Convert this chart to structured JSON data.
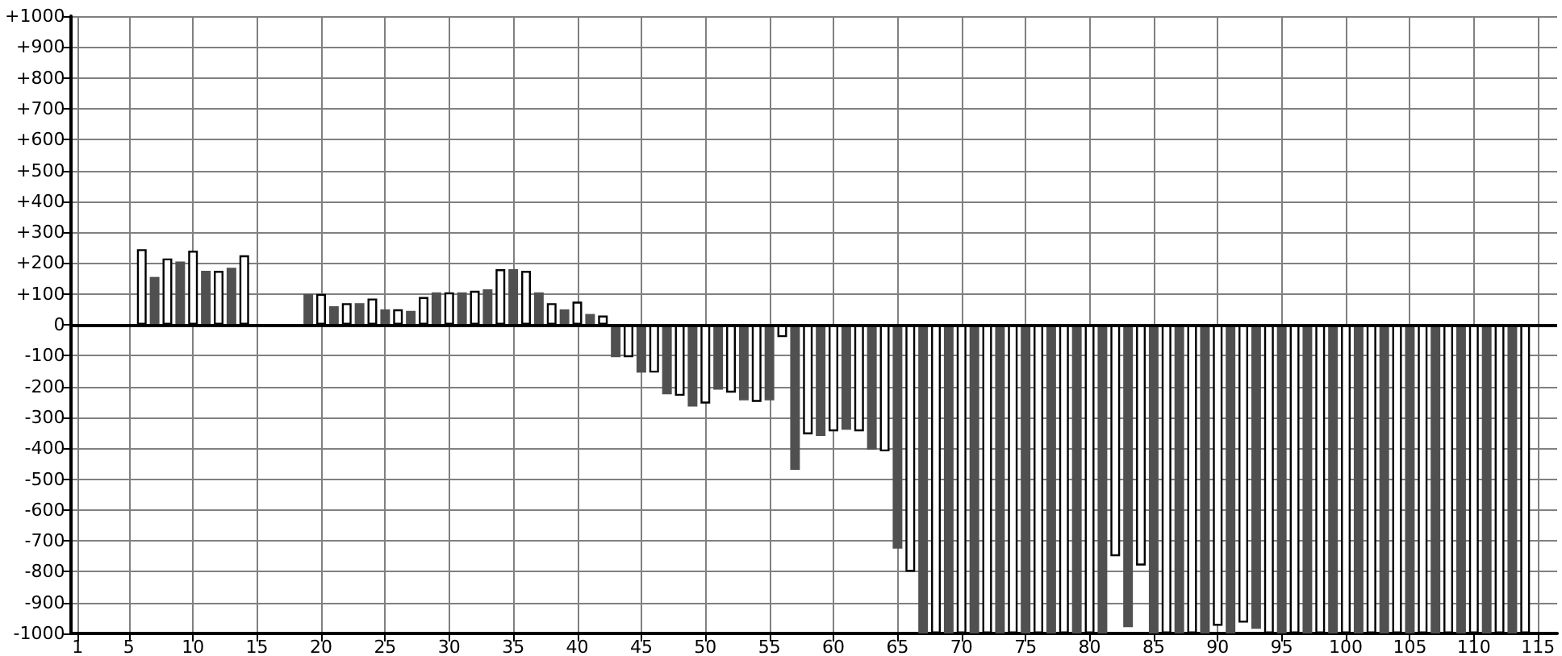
{
  "chart_data": {
    "type": "bar",
    "xlim": [
      0.5,
      116.5
    ],
    "xticks": [
      1,
      5,
      10,
      15,
      20,
      25,
      30,
      35,
      40,
      45,
      50,
      55,
      60,
      65,
      70,
      75,
      80,
      85,
      90,
      95,
      100,
      105,
      110,
      115
    ],
    "ylim": [
      -1000,
      1000
    ],
    "yticks": [
      {
        "value": -1000,
        "label": "-1000"
      },
      {
        "value": -900,
        "label": "-900"
      },
      {
        "value": -800,
        "label": "-800"
      },
      {
        "value": -700,
        "label": "-700"
      },
      {
        "value": -600,
        "label": "-600"
      },
      {
        "value": -500,
        "label": "-500"
      },
      {
        "value": -400,
        "label": "-400"
      },
      {
        "value": -300,
        "label": "-300"
      },
      {
        "value": -200,
        "label": "-200"
      },
      {
        "value": -100,
        "label": "-100"
      },
      {
        "value": 0,
        "label": "0"
      },
      {
        "value": 100,
        "label": "+100"
      },
      {
        "value": 200,
        "label": "+200"
      },
      {
        "value": 300,
        "label": "+300"
      },
      {
        "value": 400,
        "label": "+400"
      },
      {
        "value": 500,
        "label": "+500"
      },
      {
        "value": 600,
        "label": "+600"
      },
      {
        "value": 700,
        "label": "+700"
      },
      {
        "value": 800,
        "label": "+800"
      },
      {
        "value": 900,
        "label": "+900"
      },
      {
        "value": 1000,
        "label": "+1000"
      }
    ],
    "grid": true,
    "ref_lines": [
      {
        "axis": "y",
        "value": 0,
        "color": "#000000"
      }
    ],
    "series": [
      {
        "color": "#ffffff",
        "x": [
          6,
          8,
          10,
          12,
          14,
          20,
          22,
          24,
          26,
          28,
          30,
          32,
          34,
          36,
          38,
          40,
          42,
          44,
          46,
          48,
          50,
          52,
          54,
          56,
          58,
          60,
          62,
          64,
          66,
          68,
          70,
          72,
          74,
          76,
          78,
          80,
          82,
          84,
          86,
          88,
          90,
          92,
          94,
          96,
          98,
          100,
          102,
          104,
          106,
          108,
          110,
          112,
          114
        ],
        "values": [
          245,
          215,
          240,
          175,
          225,
          100,
          70,
          85,
          50,
          90,
          105,
          110,
          180,
          175,
          70,
          75,
          30,
          -105,
          -155,
          -230,
          -255,
          -220,
          -250,
          -40,
          -355,
          -345,
          -345,
          -410,
          -800,
          -1000,
          -1000,
          -1000,
          -1000,
          -1000,
          -1000,
          -1000,
          -750,
          -780,
          -1000,
          -1000,
          -975,
          -965,
          -1000,
          -1000,
          -1000,
          -1000,
          -1000,
          -1000,
          -1000,
          -1000,
          -1000,
          -1000,
          -1000
        ]
      },
      {
        "color": "#505050",
        "x": [
          7,
          9,
          11,
          13,
          19,
          21,
          23,
          25,
          27,
          29,
          31,
          33,
          35,
          37,
          39,
          41,
          43,
          45,
          47,
          49,
          51,
          53,
          55,
          57,
          59,
          61,
          63,
          65,
          67,
          69,
          71,
          73,
          75,
          77,
          79,
          81,
          83,
          85,
          87,
          89,
          91,
          93,
          95,
          97,
          99,
          101,
          103,
          105,
          107,
          109,
          111,
          113
        ],
        "values": [
          155,
          205,
          175,
          185,
          100,
          60,
          70,
          50,
          45,
          105,
          105,
          115,
          180,
          105,
          50,
          35,
          -105,
          -155,
          -225,
          -265,
          -210,
          -245,
          -245,
          -470,
          -360,
          -340,
          -405,
          -725,
          -1000,
          -1000,
          -1000,
          -1000,
          -1000,
          -1000,
          -1000,
          -1000,
          -980,
          -1000,
          -1000,
          -1000,
          -1000,
          -985,
          -1000,
          -1000,
          -1000,
          -1000,
          -1000,
          -1000,
          -1000,
          -1000,
          -1000,
          -1000
        ]
      }
    ]
  }
}
